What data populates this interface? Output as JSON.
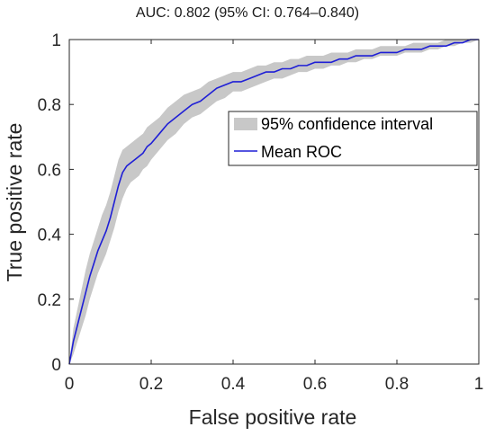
{
  "chart_data": {
    "type": "line",
    "title": "AUC: 0.802 (95% CI: 0.764–0.840)",
    "xlabel": "False positive rate",
    "ylabel": "True positive rate",
    "xlim": [
      0,
      1
    ],
    "ylim": [
      0,
      1
    ],
    "xticks": [
      "0",
      "0.2",
      "0.4",
      "0.6",
      "0.8",
      "1"
    ],
    "yticks": [
      "0",
      "0.2",
      "0.4",
      "0.6",
      "0.8",
      "1"
    ],
    "grid": false,
    "legend_position": "upper-right",
    "legend": [
      "95% confidence interval",
      "Mean ROC"
    ],
    "colors": {
      "mean_line": "#1f1fd6",
      "ci_band": "#c8c8c8",
      "axis": "#262626"
    },
    "series": [
      {
        "name": "Mean ROC",
        "x": [
          0,
          0.01,
          0.02,
          0.03,
          0.04,
          0.05,
          0.06,
          0.07,
          0.08,
          0.09,
          0.1,
          0.11,
          0.12,
          0.13,
          0.14,
          0.15,
          0.16,
          0.17,
          0.18,
          0.19,
          0.2,
          0.22,
          0.24,
          0.26,
          0.28,
          0.3,
          0.32,
          0.34,
          0.36,
          0.38,
          0.4,
          0.42,
          0.44,
          0.46,
          0.48,
          0.5,
          0.52,
          0.54,
          0.56,
          0.58,
          0.6,
          0.62,
          0.64,
          0.66,
          0.68,
          0.7,
          0.72,
          0.74,
          0.76,
          0.78,
          0.8,
          0.82,
          0.84,
          0.86,
          0.88,
          0.9,
          0.92,
          0.94,
          0.96,
          0.98,
          1
        ],
        "y": [
          0,
          0.07,
          0.12,
          0.17,
          0.22,
          0.27,
          0.31,
          0.35,
          0.38,
          0.41,
          0.45,
          0.5,
          0.55,
          0.59,
          0.61,
          0.62,
          0.63,
          0.64,
          0.65,
          0.67,
          0.68,
          0.71,
          0.74,
          0.76,
          0.78,
          0.8,
          0.81,
          0.83,
          0.85,
          0.86,
          0.87,
          0.87,
          0.88,
          0.89,
          0.9,
          0.9,
          0.91,
          0.91,
          0.92,
          0.92,
          0.93,
          0.93,
          0.93,
          0.94,
          0.94,
          0.95,
          0.95,
          0.95,
          0.96,
          0.96,
          0.96,
          0.97,
          0.97,
          0.97,
          0.98,
          0.98,
          0.98,
          0.99,
          0.99,
          1,
          1
        ]
      },
      {
        "name": "95% confidence interval",
        "x": [
          0,
          0.01,
          0.02,
          0.03,
          0.04,
          0.05,
          0.06,
          0.07,
          0.08,
          0.09,
          0.1,
          0.11,
          0.12,
          0.13,
          0.14,
          0.15,
          0.16,
          0.17,
          0.18,
          0.19,
          0.2,
          0.22,
          0.24,
          0.26,
          0.28,
          0.3,
          0.32,
          0.34,
          0.36,
          0.38,
          0.4,
          0.42,
          0.44,
          0.46,
          0.48,
          0.5,
          0.52,
          0.54,
          0.56,
          0.58,
          0.6,
          0.62,
          0.64,
          0.66,
          0.68,
          0.7,
          0.72,
          0.74,
          0.76,
          0.78,
          0.8,
          0.82,
          0.84,
          0.86,
          0.88,
          0.9,
          0.92,
          0.94,
          0.96,
          0.98,
          1
        ],
        "lower": [
          0,
          0.03,
          0.07,
          0.11,
          0.15,
          0.2,
          0.24,
          0.28,
          0.31,
          0.34,
          0.38,
          0.42,
          0.47,
          0.51,
          0.54,
          0.56,
          0.57,
          0.58,
          0.6,
          0.61,
          0.63,
          0.66,
          0.69,
          0.71,
          0.74,
          0.76,
          0.77,
          0.79,
          0.81,
          0.82,
          0.84,
          0.84,
          0.85,
          0.86,
          0.87,
          0.88,
          0.88,
          0.89,
          0.9,
          0.9,
          0.91,
          0.91,
          0.92,
          0.92,
          0.93,
          0.93,
          0.94,
          0.94,
          0.95,
          0.95,
          0.95,
          0.96,
          0.96,
          0.96,
          0.97,
          0.97,
          0.98,
          0.98,
          0.99,
          0.99,
          1
        ],
        "upper": [
          0,
          0.11,
          0.17,
          0.23,
          0.29,
          0.34,
          0.38,
          0.42,
          0.46,
          0.49,
          0.53,
          0.58,
          0.63,
          0.66,
          0.67,
          0.68,
          0.69,
          0.7,
          0.71,
          0.73,
          0.74,
          0.76,
          0.79,
          0.81,
          0.83,
          0.84,
          0.85,
          0.87,
          0.88,
          0.89,
          0.9,
          0.9,
          0.91,
          0.92,
          0.92,
          0.93,
          0.93,
          0.94,
          0.94,
          0.95,
          0.95,
          0.95,
          0.96,
          0.96,
          0.96,
          0.97,
          0.97,
          0.97,
          0.98,
          0.98,
          0.98,
          0.98,
          0.99,
          0.99,
          0.99,
          0.99,
          1,
          1,
          1,
          1,
          1
        ]
      }
    ]
  }
}
